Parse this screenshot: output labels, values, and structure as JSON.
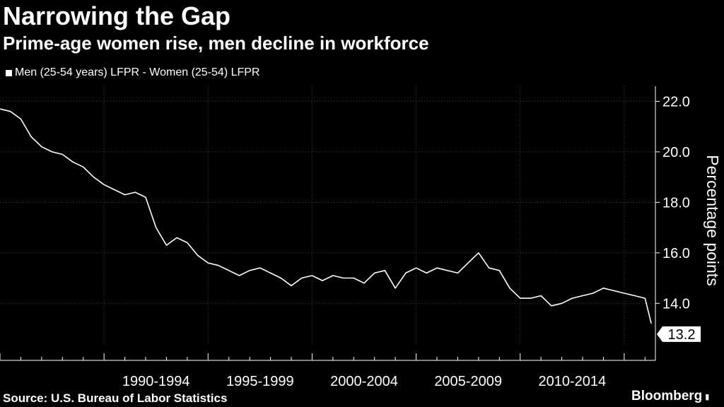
{
  "header": {
    "title": "Narrowing the Gap",
    "subtitle": "Prime-age women rise, men decline in workforce"
  },
  "footer": {
    "source": "Source: U.S. Bureau of Labor Statistics",
    "brand": "Bloomberg"
  },
  "colors": {
    "background": "#000000",
    "line": "#ffffff",
    "grid": "#444444"
  },
  "chart_data": {
    "type": "line",
    "title": "Narrowing the Gap",
    "subtitle": "Prime-age women rise, men decline in workforce",
    "ylabel": "Percentage points",
    "xlabel": "",
    "ylim": [
      12.3,
      22.6
    ],
    "y_ticks": [
      14.0,
      16.0,
      18.0,
      20.0,
      22.0
    ],
    "y_tick_labels": [
      "14.0",
      "16.0",
      "18.0",
      "20.0",
      "22.0"
    ],
    "x_range": [
      1985.0,
      2016.5
    ],
    "x_category_labels": [
      "1990-1994",
      "1995-1999",
      "2000-2004",
      "2005-2009",
      "2010-2014"
    ],
    "x_category_spans": [
      [
        1990,
        1995
      ],
      [
        1995,
        2000
      ],
      [
        2000,
        2005
      ],
      [
        2005,
        2010
      ],
      [
        2010,
        2015
      ]
    ],
    "x_grid_years": [
      1990,
      1995,
      2000,
      2005,
      2010,
      2015
    ],
    "grid": true,
    "legend_position": "top-left",
    "last_value_label": "13.2",
    "series": [
      {
        "name": "Men (25-54 years) LFPR - Women (25-54) LFPR",
        "x": [
          1985.0,
          1985.5,
          1986.0,
          1986.5,
          1987.0,
          1987.5,
          1988.0,
          1988.5,
          1989.0,
          1989.5,
          1990.0,
          1990.5,
          1991.0,
          1991.5,
          1992.0,
          1992.5,
          1993.0,
          1993.5,
          1994.0,
          1994.5,
          1995.0,
          1995.5,
          1996.0,
          1996.5,
          1997.0,
          1997.5,
          1998.0,
          1998.5,
          1999.0,
          1999.5,
          2000.0,
          2000.5,
          2001.0,
          2001.5,
          2002.0,
          2002.5,
          2003.0,
          2003.5,
          2004.0,
          2004.5,
          2005.0,
          2005.5,
          2006.0,
          2006.5,
          2007.0,
          2007.5,
          2008.0,
          2008.5,
          2009.0,
          2009.5,
          2010.0,
          2010.5,
          2011.0,
          2011.5,
          2012.0,
          2012.5,
          2013.0,
          2013.5,
          2014.0,
          2014.5,
          2015.0,
          2015.5,
          2016.0,
          2016.3
        ],
        "values": [
          21.7,
          21.6,
          21.3,
          20.6,
          20.2,
          20.0,
          19.9,
          19.6,
          19.4,
          19.0,
          18.7,
          18.5,
          18.3,
          18.4,
          18.2,
          17.0,
          16.3,
          16.6,
          16.4,
          15.9,
          15.6,
          15.5,
          15.3,
          15.1,
          15.3,
          15.4,
          15.2,
          15.0,
          14.7,
          15.0,
          15.1,
          14.9,
          15.1,
          15.0,
          15.0,
          14.8,
          15.2,
          15.3,
          14.6,
          15.2,
          15.4,
          15.2,
          15.4,
          15.3,
          15.2,
          15.6,
          16.0,
          15.4,
          15.3,
          14.6,
          14.2,
          14.2,
          14.3,
          13.9,
          14.0,
          14.2,
          14.3,
          14.4,
          14.6,
          14.5,
          14.4,
          14.3,
          14.2,
          13.2
        ]
      }
    ]
  }
}
